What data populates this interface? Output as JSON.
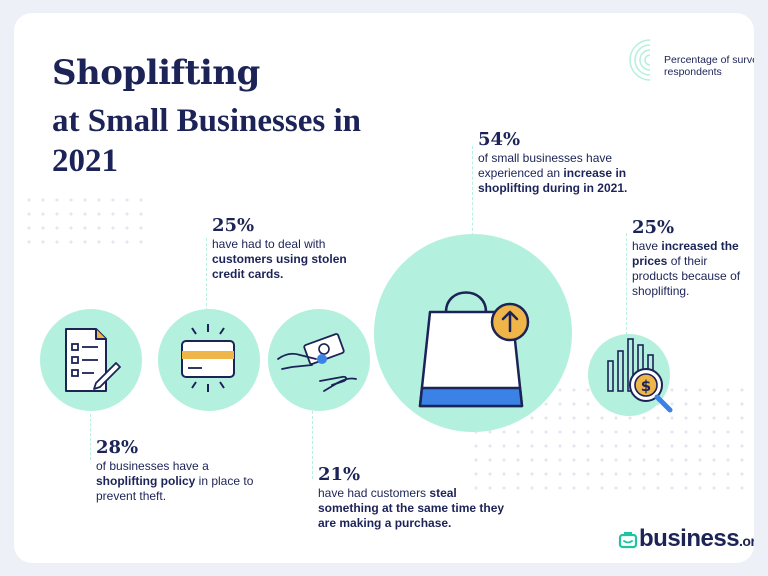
{
  "header": {
    "title_bold": "Shoplifting",
    "title_rest": "at Small Businesses in 2021"
  },
  "legend": {
    "text": "Percentage of survey respondents"
  },
  "stats": [
    {
      "pct": "28%",
      "pre": "of businesses have a ",
      "bold": "shoplifting policy",
      "post": " in place to prevent theft."
    },
    {
      "pct": "25%",
      "pre": "have had to deal with ",
      "bold": "customers using stolen credit cards.",
      "post": ""
    },
    {
      "pct": "21%",
      "pre": "have had customers ",
      "bold": "steal something at the same time they are making a purchase.",
      "post": ""
    },
    {
      "pct": "54%",
      "pre": "of small businesses have experienced an ",
      "bold": "increase in shoplifting during in 2021.",
      "post": ""
    },
    {
      "pct": "25%",
      "pre": "have ",
      "bold": "increased the prices",
      "post": " of their products because of shoplifting."
    }
  ],
  "icons": [
    "document-checklist-icon",
    "credit-card-icon",
    "cash-handoff-icon",
    "shopping-bag-up-arrow-icon",
    "price-chart-magnifier-icon",
    "legend-radiating-arcs-icon",
    "briefcase-logo-icon"
  ],
  "brand": {
    "name": "business",
    "tld": ".org"
  },
  "colors": {
    "navy": "#1c2357",
    "mint": "#b4f0de",
    "gold": "#f0b548",
    "blue": "#3b82e6",
    "teal": "#1ec6a0"
  }
}
